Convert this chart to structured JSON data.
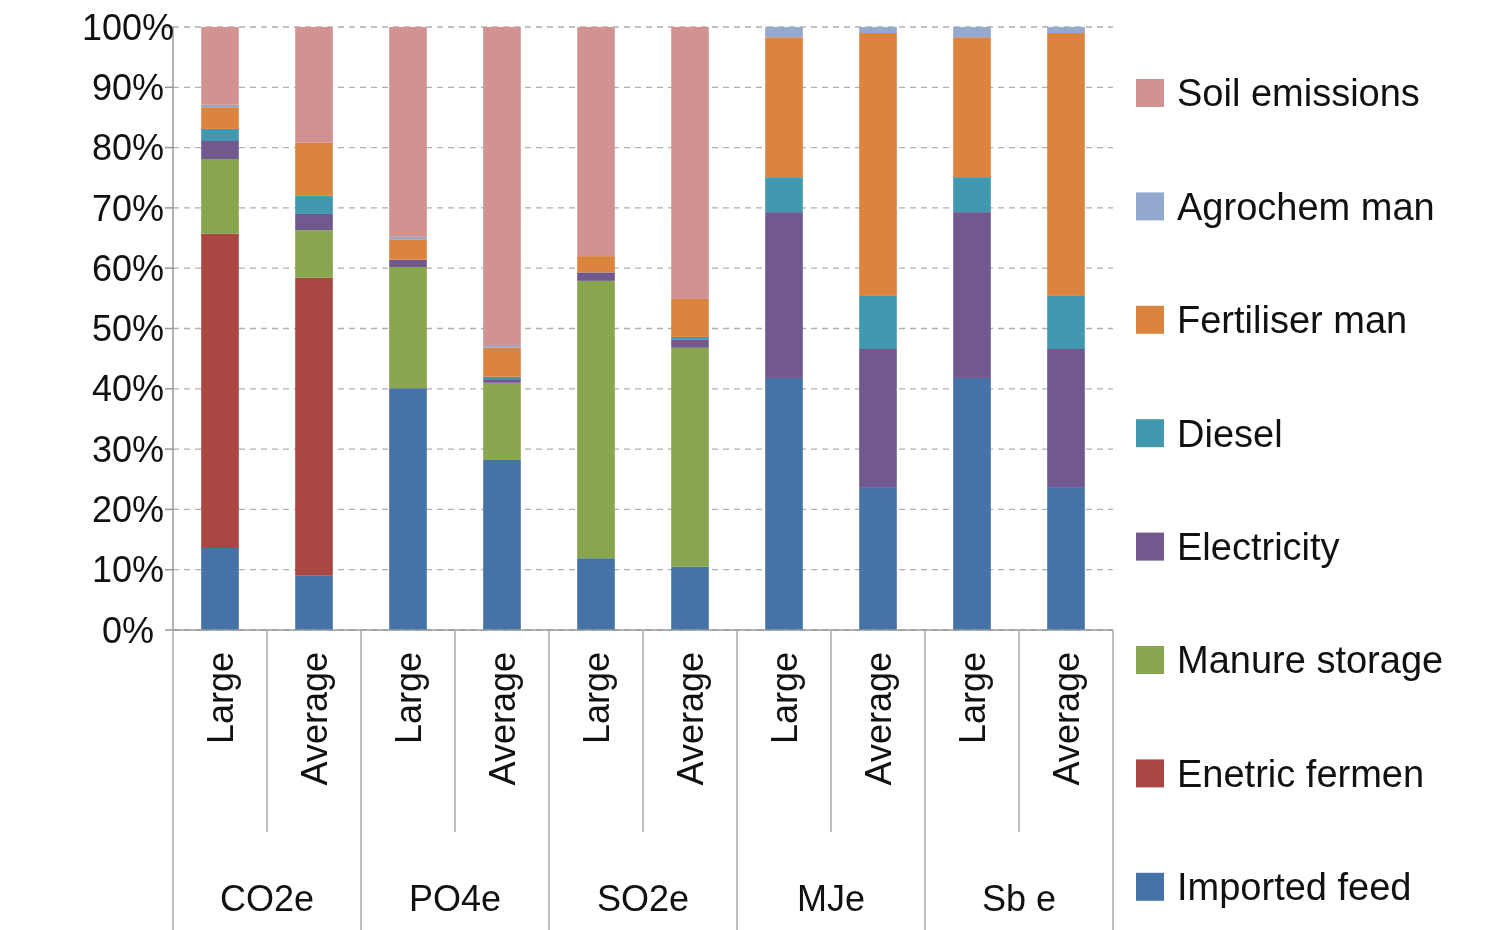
{
  "chart_data": {
    "type": "bar",
    "stacked": true,
    "categories": [
      "Large",
      "Average",
      "Large",
      "Average",
      "Large",
      "Average",
      "Large",
      "Average",
      "Large",
      "Average"
    ],
    "annotations": [
      "CO2e",
      "PO4e",
      "SO2e",
      "MJe",
      "Sb e"
    ],
    "series": [
      {
        "name": "Imported feed",
        "color": "#4572a7",
        "values": [
          13.6,
          9.0,
          40.1,
          28.2,
          11.9,
          10.5,
          41.8,
          23.7,
          41.8,
          23.7
        ]
      },
      {
        "name": "Enetric fermen",
        "color": "#aa4643",
        "values": [
          52.1,
          49.4,
          0,
          0,
          0,
          0,
          0,
          0,
          0,
          0
        ]
      },
      {
        "name": "Manure storage",
        "color": "#89a54e",
        "values": [
          12.4,
          7.9,
          20.1,
          12.8,
          46.0,
          36.3,
          0,
          0,
          0,
          0
        ]
      },
      {
        "name": "Electricity",
        "color": "#71588f",
        "values": [
          3.0,
          2.7,
          1.2,
          0.6,
          1.4,
          1.4,
          27.5,
          22.9,
          27.5,
          22.9
        ]
      },
      {
        "name": "Diesel",
        "color": "#4198af",
        "values": [
          2.0,
          3.0,
          0,
          0.4,
          0,
          0.4,
          5.8,
          8.8,
          5.8,
          8.8
        ]
      },
      {
        "name": "Fertiliser man",
        "color": "#db843d",
        "values": [
          3.6,
          8.8,
          3.4,
          4.8,
          2.7,
          6.3,
          23.2,
          43.6,
          23.2,
          43.6
        ]
      },
      {
        "name": "Agrochem man",
        "color": "#93a9cf",
        "values": [
          0.4,
          0,
          0.4,
          0.3,
          0,
          0,
          1.7,
          1.0,
          1.7,
          1.0
        ]
      },
      {
        "name": "Soil emissions",
        "color": "#d19392",
        "values": [
          12.9,
          19.2,
          34.8,
          52.9,
          38.0,
          45.1,
          0,
          0,
          0,
          0
        ]
      }
    ],
    "ylim": [
      0,
      100
    ],
    "yticks": [
      {
        "value": 0,
        "label": "0%"
      },
      {
        "value": 10,
        "label": "10%"
      },
      {
        "value": 20,
        "label": "20%"
      },
      {
        "value": 30,
        "label": "30%"
      },
      {
        "value": 40,
        "label": "40%"
      },
      {
        "value": 50,
        "label": "50%"
      },
      {
        "value": 60,
        "label": "60%"
      },
      {
        "value": 70,
        "label": "70%"
      },
      {
        "value": 80,
        "label": "80%"
      },
      {
        "value": 90,
        "label": "90%"
      },
      {
        "value": 100,
        "label": "100%"
      }
    ],
    "grid": "y",
    "legend": "right"
  }
}
